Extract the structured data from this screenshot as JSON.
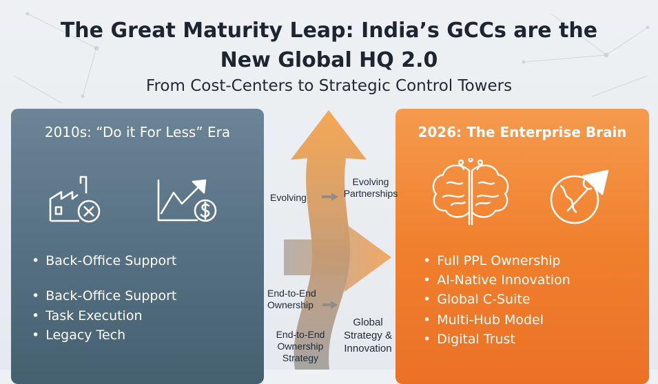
{
  "header": {
    "title_line1": "The Great Maturity Leap: India’s GCCs are the",
    "title_line2": "New Global HQ 2.0",
    "subtitle": "From Cost-Centers to Strategic Control Towers"
  },
  "left_panel": {
    "title": "2010s: “Do it For Less” Era",
    "icons": [
      "factory-cancel-icon",
      "chart-dollar-icon"
    ],
    "bullets": [
      "Back-Office Support",
      "Back-Office Support",
      "Task Execution",
      "Legacy Tech"
    ]
  },
  "right_panel": {
    "title": "2026: The Enterprise Brain",
    "icons": [
      "brain-circuit-icon",
      "globe-growth-icon"
    ],
    "bullets": [
      "Full PPL Ownership",
      "AI-Native Innovation",
      "Global C-Suite",
      "Multi-Hub Model",
      "Digital Trust"
    ]
  },
  "middle": {
    "evolving": "Evolving",
    "evolving_partnerships_1": "Evolving",
    "evolving_partnerships_2": "Partnerships",
    "e2e_1a": "End-to-End",
    "e2e_1b": "Ownership",
    "e2e_2a": "End-to-End",
    "e2e_2b": "Ownership",
    "strategy": "Strategy",
    "global_1": "Global",
    "global_2": "Strategy &",
    "global_3": "Innovation"
  },
  "colors": {
    "left_panel": "#567183",
    "right_panel": "#f0802d",
    "arrow_orange": "#f5a04a",
    "arrow_gray": "#9c9a98"
  }
}
